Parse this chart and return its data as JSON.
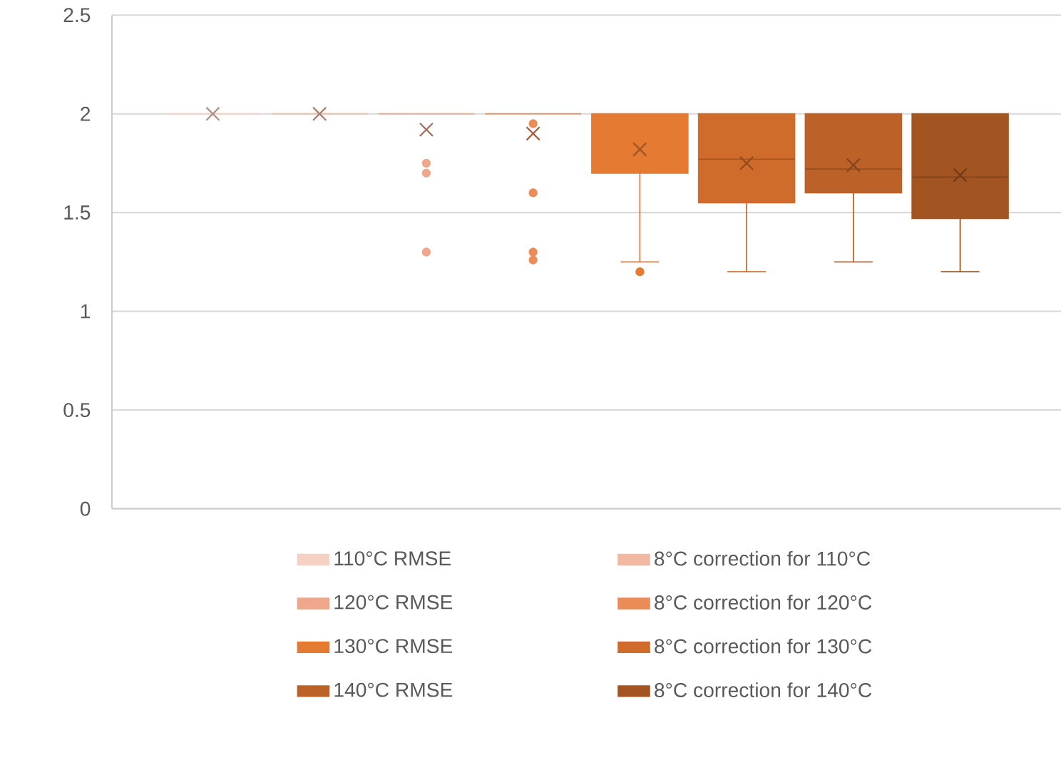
{
  "chart_data": {
    "type": "box",
    "categories": [
      null
    ],
    "ylim": [
      0,
      2.5
    ],
    "yticks": [
      0,
      0.5,
      1,
      1.5,
      2,
      2.5
    ],
    "grid": "y",
    "legend": "bottom",
    "series": [
      {
        "name": "110°C RMSE",
        "color": "#f6d0c2",
        "boxes": [
          {
            "low": 2,
            "q1": 2,
            "median": 2,
            "q3": 2,
            "high": 2,
            "mean": 2
          }
        ]
      },
      {
        "name": "8°C correction for 110°C",
        "color": "#f2b9a2",
        "boxes": [
          {
            "low": 2,
            "q1": 2,
            "median": 2,
            "q3": 2,
            "high": 2,
            "mean": 2
          }
        ]
      },
      {
        "name": "120°C RMSE",
        "color": "#eea78a",
        "boxes": [
          {
            "low": 2,
            "q1": 2,
            "median": 2,
            "q3": 2,
            "high": 2,
            "mean": 1.92,
            "outliers": [
              1.75,
              1.7,
              1.3
            ]
          }
        ]
      },
      {
        "name": "8°C correction for 120°C",
        "color": "#eb8b58",
        "boxes": [
          {
            "low": 2,
            "q1": 2,
            "median": 2,
            "q3": 2,
            "high": 2,
            "mean": 1.9,
            "outliers": [
              1.95,
              1.6,
              1.3,
              1.26
            ]
          }
        ]
      },
      {
        "name": "130°C RMSE",
        "color": "#e57a32",
        "boxes": [
          {
            "low": 1.25,
            "q1": 1.7,
            "median": 2,
            "q3": 2,
            "high": 2,
            "mean": 1.82,
            "outliers": [
              1.2
            ]
          }
        ]
      },
      {
        "name": "8°C correction for 130°C",
        "color": "#d06c2b",
        "boxes": [
          {
            "low": 1.2,
            "q1": 1.55,
            "median": 1.77,
            "q3": 2,
            "high": 2,
            "mean": 1.75
          }
        ]
      },
      {
        "name": "140°C RMSE",
        "color": "#bc6128",
        "boxes": [
          {
            "low": 1.25,
            "q1": 1.6,
            "median": 1.72,
            "q3": 2,
            "high": 2,
            "mean": 1.74
          }
        ]
      },
      {
        "name": "8°C correction for 140°C",
        "color": "#a35521",
        "boxes": [
          {
            "low": 1.2,
            "q1": 1.47,
            "median": 1.68,
            "q3": 2,
            "high": 2,
            "mean": 1.69
          }
        ]
      }
    ]
  }
}
